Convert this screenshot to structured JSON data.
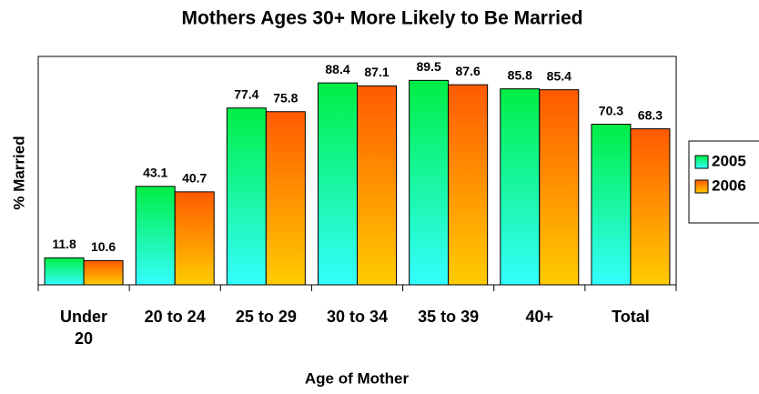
{
  "chart_data": {
    "type": "bar",
    "title": "Mothers Ages 30+ More Likely to Be Married",
    "x_label": "Age of Mother",
    "y_label": "% Married",
    "categories": [
      "Under 20",
      "20 to 24",
      "25 to 29",
      "30 to 34",
      "35 to 39",
      "40+",
      "Total"
    ],
    "series": [
      {
        "name": "2005",
        "color": "#00ee44",
        "gradient_end": "#33ffff",
        "values": [
          11.8,
          43.1,
          77.4,
          88.4,
          89.5,
          85.8,
          70.3
        ]
      },
      {
        "name": "2006",
        "color": "#ff5a00",
        "gradient_end": "#ffcc00",
        "values": [
          10.6,
          40.7,
          75.8,
          87.1,
          87.6,
          85.4,
          68.3
        ]
      }
    ],
    "ylim": [
      0,
      100
    ],
    "legend": "right"
  }
}
